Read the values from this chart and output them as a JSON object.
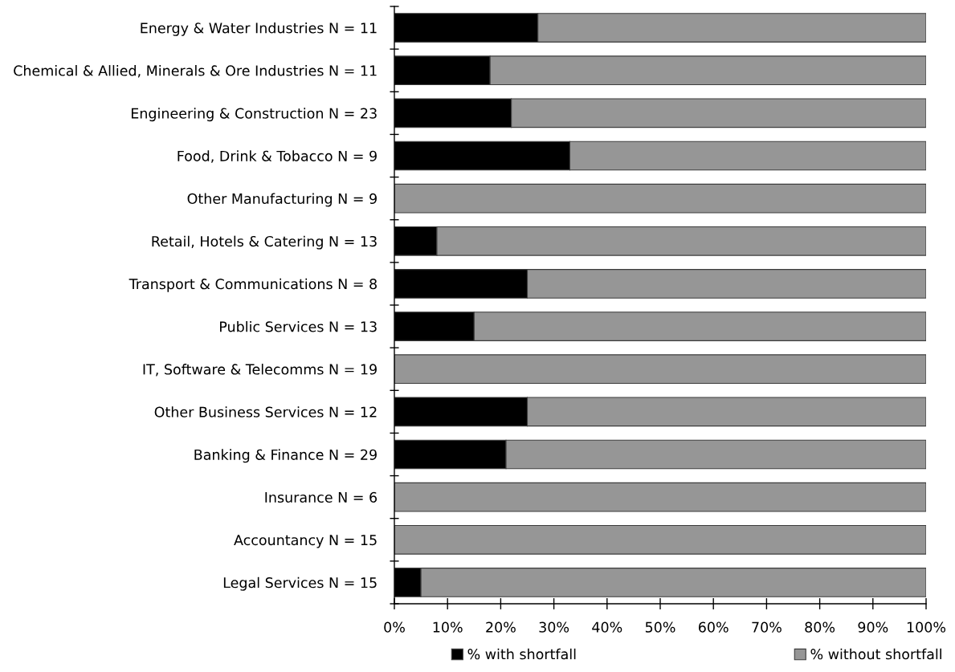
{
  "chart_data": {
    "type": "bar",
    "orientation": "horizontal",
    "stacked": true,
    "categories": [
      "Energy & Water Industries N = 11",
      "Chemical & Allied, Minerals & Ore Industries N = 11",
      "Engineering & Construction N = 23",
      "Food, Drink & Tobacco N = 9",
      "Other Manufacturing N = 9",
      "Retail, Hotels & Catering N = 13",
      "Transport & Communications N = 8",
      "Public Services N = 13",
      "IT, Software & Telecomms N = 19",
      "Other Business Services N = 12",
      "Banking & Finance N = 29",
      "Insurance N = 6",
      "Accountancy N = 15",
      "Legal Services N = 15"
    ],
    "series": [
      {
        "name": "% with shortfall",
        "color": "#000000",
        "values": [
          27,
          18,
          22,
          33,
          0,
          8,
          25,
          15,
          0,
          25,
          21,
          0,
          0,
          5
        ]
      },
      {
        "name": "% without shortfall",
        "color": "#969696",
        "values": [
          73,
          82,
          78,
          67,
          100,
          92,
          75,
          85,
          100,
          75,
          79,
          100,
          100,
          95
        ]
      }
    ],
    "xlim": [
      0,
      100
    ],
    "xticks": [
      {
        "value": 0,
        "label": "0%"
      },
      {
        "value": 10,
        "label": "10%"
      },
      {
        "value": 20,
        "label": "20%"
      },
      {
        "value": 30,
        "label": "30%"
      },
      {
        "value": 40,
        "label": "40%"
      },
      {
        "value": 50,
        "label": "50%"
      },
      {
        "value": 60,
        "label": "60%"
      },
      {
        "value": 70,
        "label": "70%"
      },
      {
        "value": 80,
        "label": "80%"
      },
      {
        "value": 90,
        "label": "90%"
      },
      {
        "value": 100,
        "label": "100%"
      }
    ],
    "grid": false,
    "legend": "bottom"
  }
}
